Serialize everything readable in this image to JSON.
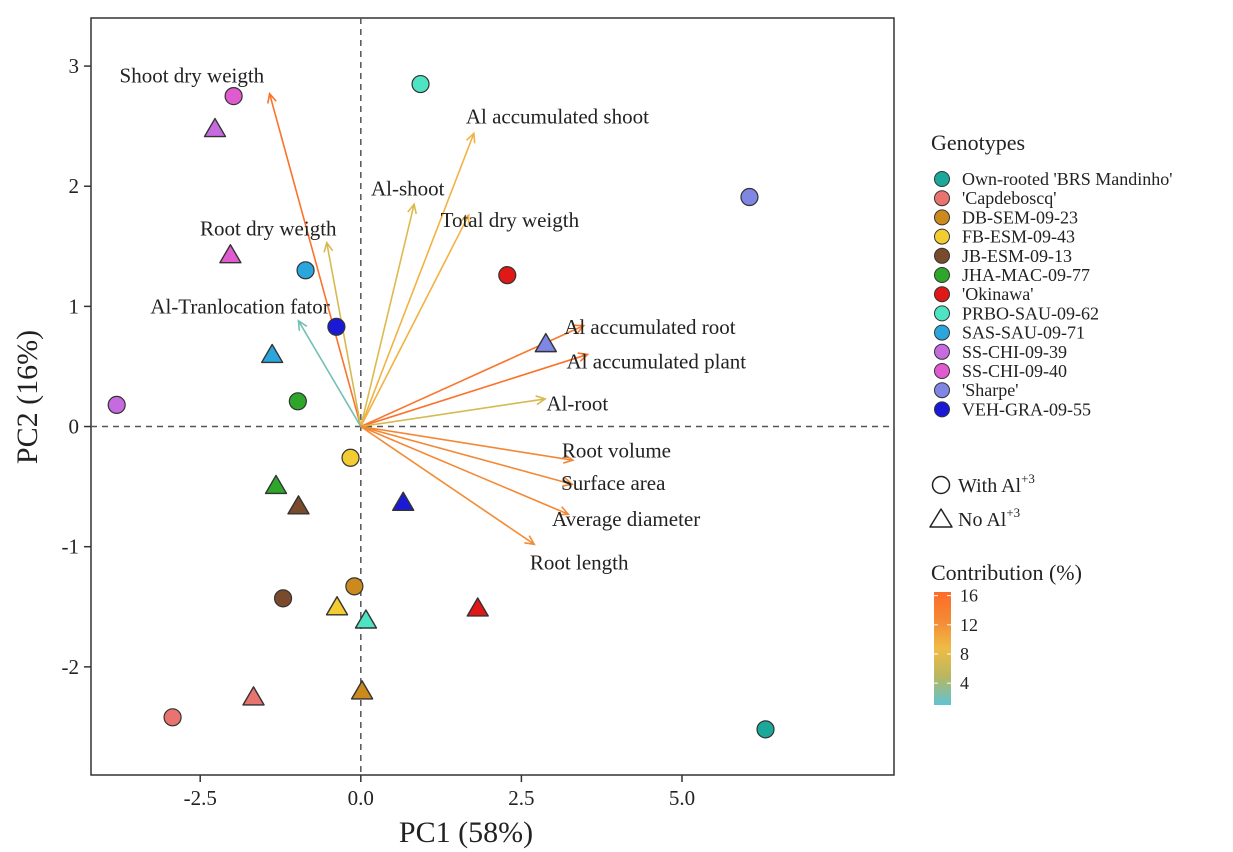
{
  "chart_data": {
    "type": "scatter",
    "subtype": "PCA biplot",
    "xlabel": "PC1 (58%)",
    "ylabel": "PC2 (16%)",
    "xlim": [
      -4.2,
      8.3
    ],
    "ylim": [
      -2.9,
      3.4
    ],
    "xticks": [
      -2.5,
      0.0,
      2.5,
      5.0
    ],
    "xtick_labels": [
      "-2.5",
      "0.0",
      "2.5",
      "5.0"
    ],
    "yticks": [
      -2,
      -1,
      0,
      1,
      2,
      3
    ],
    "ytick_labels": [
      "-2",
      "-1",
      "0",
      "1",
      "2",
      "3"
    ],
    "grid": false,
    "reference_lines": {
      "x": 0,
      "y": 0,
      "style": "dashed"
    },
    "legend_genotypes": {
      "title": "Genotypes",
      "position": "right",
      "items": [
        {
          "name": "Own-rooted 'BRS Mandinho'",
          "color": "#1aa89a"
        },
        {
          "name": "'Capdeboscq'",
          "color": "#e8736f"
        },
        {
          "name": "DB-SEM-09-23",
          "color": "#cc8a1e"
        },
        {
          "name": "FB-ESM-09-43",
          "color": "#f2cc30"
        },
        {
          "name": "JB-ESM-09-13",
          "color": "#7a4a2c"
        },
        {
          "name": "JHA-MAC-09-77",
          "color": "#2ea62a"
        },
        {
          "name": "'Okinawa'",
          "color": "#e01818"
        },
        {
          "name": "PRBO-SAU-09-62",
          "color": "#4ee3c2"
        },
        {
          "name": "SAS-SAU-09-71",
          "color": "#2aa6dc"
        },
        {
          "name": "SS-CHI-09-39",
          "color": "#c66bdf"
        },
        {
          "name": "SS-CHI-09-40",
          "color": "#e05bd0"
        },
        {
          "name": "'Sharpe'",
          "color": "#7f86e3"
        },
        {
          "name": "VEH-GRA-09-55",
          "color": "#1a1ad6"
        }
      ]
    },
    "legend_treatment": {
      "position": "right",
      "items": [
        {
          "shape": "circle",
          "label": "With Al",
          "sup": "+3"
        },
        {
          "shape": "triangle",
          "label": "No Al",
          "sup": "+3"
        }
      ]
    },
    "legend_contribution": {
      "title": "Contribution (%)",
      "position": "right",
      "ticks": [
        "16",
        "12",
        "8",
        "4"
      ],
      "values": [
        16,
        12,
        8,
        4
      ],
      "range": [
        1,
        16.5
      ],
      "colors": [
        "#5fc3d3",
        "#b6b760",
        "#f0bb45",
        "#f38a35",
        "#ff6a28"
      ]
    },
    "points": [
      {
        "genotype": "Own-rooted 'BRS Mandinho'",
        "shape": "circle",
        "x": 6.3,
        "y": -2.52
      },
      {
        "genotype": "'Capdeboscq'",
        "shape": "circle",
        "x": -2.93,
        "y": -2.42
      },
      {
        "genotype": "'Capdeboscq'",
        "shape": "triangle",
        "x": -1.67,
        "y": -2.25
      },
      {
        "genotype": "DB-SEM-09-23",
        "shape": "circle",
        "x": -0.1,
        "y": -1.33
      },
      {
        "genotype": "DB-SEM-09-23",
        "shape": "triangle",
        "x": 0.02,
        "y": -2.2
      },
      {
        "genotype": "FB-ESM-09-43",
        "shape": "circle",
        "x": -0.16,
        "y": -0.26
      },
      {
        "genotype": "FB-ESM-09-43",
        "shape": "triangle",
        "x": -0.37,
        "y": -1.5
      },
      {
        "genotype": "JB-ESM-09-13",
        "shape": "circle",
        "x": -1.21,
        "y": -1.43
      },
      {
        "genotype": "JB-ESM-09-13",
        "shape": "triangle",
        "x": -0.97,
        "y": -0.66
      },
      {
        "genotype": "JHA-MAC-09-77",
        "shape": "circle",
        "x": -0.98,
        "y": 0.21
      },
      {
        "genotype": "JHA-MAC-09-77",
        "shape": "triangle",
        "x": -1.32,
        "y": -0.49
      },
      {
        "genotype": "'Okinawa'",
        "shape": "circle",
        "x": 2.28,
        "y": 1.26
      },
      {
        "genotype": "'Okinawa'",
        "shape": "triangle",
        "x": 1.82,
        "y": -1.51
      },
      {
        "genotype": "PRBO-SAU-09-62",
        "shape": "circle",
        "x": 0.93,
        "y": 2.85
      },
      {
        "genotype": "PRBO-SAU-09-62",
        "shape": "triangle",
        "x": 0.08,
        "y": -1.61
      },
      {
        "genotype": "SAS-SAU-09-71",
        "shape": "circle",
        "x": -0.86,
        "y": 1.3
      },
      {
        "genotype": "SAS-SAU-09-71",
        "shape": "triangle",
        "x": -1.38,
        "y": 0.6
      },
      {
        "genotype": "SS-CHI-09-39",
        "shape": "circle",
        "x": -3.8,
        "y": 0.18
      },
      {
        "genotype": "SS-CHI-09-39",
        "shape": "triangle",
        "x": -2.27,
        "y": 2.48
      },
      {
        "genotype": "SS-CHI-09-40",
        "shape": "circle",
        "x": -1.98,
        "y": 2.75
      },
      {
        "genotype": "SS-CHI-09-40",
        "shape": "triangle",
        "x": -2.03,
        "y": 1.43
      },
      {
        "genotype": "'Sharpe'",
        "shape": "circle",
        "x": 6.05,
        "y": 1.91
      },
      {
        "genotype": "'Sharpe'",
        "shape": "triangle",
        "x": 2.88,
        "y": 0.69
      },
      {
        "genotype": "VEH-GRA-09-55",
        "shape": "circle",
        "x": -0.38,
        "y": 0.83
      },
      {
        "genotype": "VEH-GRA-09-55",
        "shape": "triangle",
        "x": 0.66,
        "y": -0.63
      }
    ],
    "variables": [
      {
        "name": "Shoot dry weigth",
        "x": -1.42,
        "y": 2.77,
        "contribution": 15.5,
        "lx": -2.63,
        "ly": 2.92
      },
      {
        "name": "Al accumulated shoot",
        "x": 1.76,
        "y": 2.44,
        "contribution": 9.5,
        "lx": 3.06,
        "ly": 2.58
      },
      {
        "name": "Al-shoot",
        "x": 0.83,
        "y": 1.85,
        "contribution": 7.5,
        "lx": 0.73,
        "ly": 1.98
      },
      {
        "name": "Total dry weigth",
        "x": 1.68,
        "y": 1.76,
        "contribution": 9.5,
        "lx": 2.32,
        "ly": 1.72
      },
      {
        "name": "Root dry weigth",
        "x": -0.53,
        "y": 1.53,
        "contribution": 7.0,
        "lx": -1.44,
        "ly": 1.65
      },
      {
        "name": "Al-Tranlocation fator",
        "x": -0.97,
        "y": 0.88,
        "contribution": 2.0,
        "lx": -1.88,
        "ly": 1.0
      },
      {
        "name": "Al accumulated root",
        "x": 3.47,
        "y": 0.84,
        "contribution": 15.0,
        "lx": 4.5,
        "ly": 0.83
      },
      {
        "name": "Al accumulated plant",
        "x": 3.53,
        "y": 0.6,
        "contribution": 15.5,
        "lx": 4.6,
        "ly": 0.54
      },
      {
        "name": "Al-root",
        "x": 2.87,
        "y": 0.23,
        "contribution": 7.0,
        "lx": 3.37,
        "ly": 0.19
      },
      {
        "name": "Root volume",
        "x": 3.3,
        "y": -0.28,
        "contribution": 13.0,
        "lx": 3.98,
        "ly": -0.2
      },
      {
        "name": "Surface area",
        "x": 3.29,
        "y": -0.48,
        "contribution": 13.0,
        "lx": 3.93,
        "ly": -0.47
      },
      {
        "name": "Average diameter",
        "x": 3.23,
        "y": -0.73,
        "contribution": 13.0,
        "lx": 4.13,
        "ly": -0.77
      },
      {
        "name": "Root length",
        "x": 2.7,
        "y": -0.98,
        "contribution": 12.5,
        "lx": 3.4,
        "ly": -1.13
      }
    ]
  }
}
